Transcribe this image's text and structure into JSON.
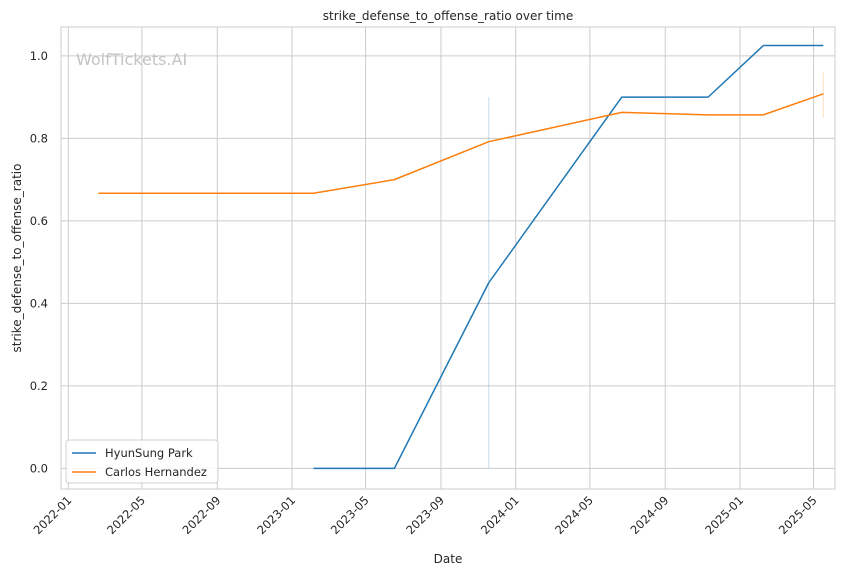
{
  "watermark": "WolfTickets.AI",
  "chart_data": {
    "type": "line",
    "title": "strike_defense_to_offense_ratio over time",
    "xlabel": "Date",
    "ylabel": "strike_defense_to_offense_ratio",
    "x_axis_type": "date",
    "xlim": [
      "2021-12-20",
      "2025-06-05"
    ],
    "ylim": [
      -0.05,
      1.07
    ],
    "x_ticks": [
      "2022-01",
      "2022-05",
      "2022-09",
      "2023-01",
      "2023-05",
      "2023-09",
      "2024-01",
      "2024-05",
      "2024-09",
      "2025-01",
      "2025-05"
    ],
    "y_ticks": [
      0.0,
      0.2,
      0.4,
      0.6,
      0.8,
      1.0
    ],
    "y_tick_labels": [
      "0.0",
      "0.2",
      "0.4",
      "0.6",
      "0.8",
      "1.0"
    ],
    "grid": true,
    "legend_position": "lower-left",
    "series": [
      {
        "name": "HyunSung Park",
        "color": "#1f77b4",
        "points": [
          {
            "x": "2023-02-05",
            "y": 0.0
          },
          {
            "x": "2023-06-17",
            "y": 0.0
          },
          {
            "x": "2023-11-18",
            "y": 0.45
          },
          {
            "x": "2024-06-22",
            "y": 0.9
          },
          {
            "x": "2024-11-10",
            "y": 0.9
          },
          {
            "x": "2025-02-08",
            "y": 1.025
          },
          {
            "x": "2025-05-17",
            "y": 1.025
          }
        ],
        "error_bars": [
          {
            "x": "2023-11-18",
            "low": 0.0,
            "high": 0.9
          }
        ]
      },
      {
        "name": "Carlos Hernandez",
        "color": "#ff7f0e",
        "points": [
          {
            "x": "2022-02-19",
            "y": 0.667
          },
          {
            "x": "2023-02-05",
            "y": 0.667
          },
          {
            "x": "2023-06-17",
            "y": 0.7
          },
          {
            "x": "2023-11-18",
            "y": 0.792
          },
          {
            "x": "2024-06-22",
            "y": 0.863
          },
          {
            "x": "2024-11-10",
            "y": 0.857
          },
          {
            "x": "2025-02-08",
            "y": 0.857
          },
          {
            "x": "2025-05-17",
            "y": 0.908
          }
        ],
        "error_bars": [
          {
            "x": "2025-05-17",
            "low": 0.85,
            "high": 0.96
          }
        ]
      }
    ]
  }
}
